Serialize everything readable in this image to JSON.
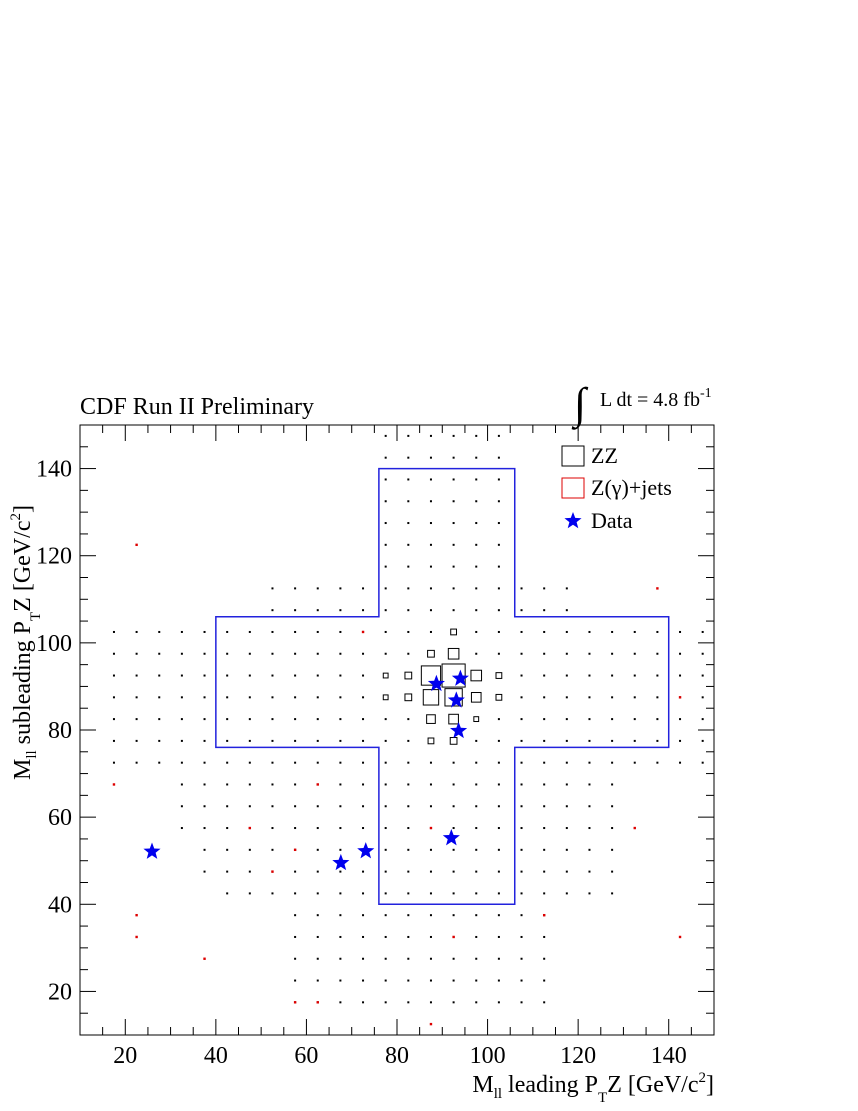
{
  "chart_data": {
    "type": "scatter",
    "title": "CDF Run II Preliminary",
    "annotation": {
      "integral_symbol": "∫",
      "text": "L dt = 4.8 fb",
      "superscript": "-1"
    },
    "xlabel": {
      "main": "M",
      "sub1": "ll",
      "mid": " leading P",
      "sub2": "T",
      "tail": "Z [GeV/c",
      "sup": "2",
      "end": "]"
    },
    "ylabel": {
      "main": "M",
      "sub1": "ll",
      "mid": " subleading P",
      "sub2": "T",
      "tail": "Z [GeV/c",
      "sup": "2",
      "end": "]"
    },
    "xlim": [
      10,
      150
    ],
    "ylim": [
      10,
      150
    ],
    "xticks": [
      20,
      40,
      60,
      80,
      100,
      120,
      140
    ],
    "yticks": [
      20,
      40,
      60,
      80,
      100,
      120,
      140
    ],
    "xtick_labels": [
      "20",
      "40",
      "60",
      "80",
      "100",
      "120",
      "140"
    ],
    "ytick_labels": [
      "20",
      "40",
      "60",
      "80",
      "100",
      "120",
      "140"
    ],
    "legend": {
      "placement": "top-right",
      "entries": [
        {
          "label": "ZZ",
          "marker": "box",
          "color": "#000000"
        },
        {
          "label": "Z(γ)+jets",
          "marker": "box",
          "color": "#dd0000"
        },
        {
          "label": "Data",
          "marker": "star",
          "color": "#0000ee"
        }
      ]
    },
    "colors": {
      "zz": "#000000",
      "zjets": "#dd0000",
      "data": "#0000ee",
      "signal_region": "#2222dd"
    },
    "signal_region": {
      "description_points": [
        [
          76,
          140
        ],
        [
          106,
          140
        ],
        [
          106,
          106
        ],
        [
          140,
          106
        ],
        [
          140,
          76
        ],
        [
          106,
          76
        ],
        [
          106,
          40
        ],
        [
          76,
          40
        ],
        [
          76,
          76
        ],
        [
          40,
          76
        ],
        [
          40,
          106
        ],
        [
          76,
          106
        ]
      ]
    },
    "series": [
      {
        "name": "ZZ",
        "kind": "box-histogram",
        "bin_width": 5,
        "points": [
          {
            "x": 87.5,
            "y": 92.5,
            "w": 1.0
          },
          {
            "x": 92.5,
            "y": 92.5,
            "w": 1.2
          },
          {
            "x": 87.5,
            "y": 87.5,
            "w": 0.8
          },
          {
            "x": 92.5,
            "y": 87.5,
            "w": 0.9
          },
          {
            "x": 97.5,
            "y": 92.5,
            "w": 0.55
          },
          {
            "x": 97.5,
            "y": 87.5,
            "w": 0.5
          },
          {
            "x": 92.5,
            "y": 97.5,
            "w": 0.55
          },
          {
            "x": 87.5,
            "y": 82.5,
            "w": 0.45
          },
          {
            "x": 92.5,
            "y": 82.5,
            "w": 0.5
          },
          {
            "x": 82.5,
            "y": 92.5,
            "w": 0.35
          },
          {
            "x": 82.5,
            "y": 87.5,
            "w": 0.35
          },
          {
            "x": 87.5,
            "y": 97.5,
            "w": 0.35
          },
          {
            "x": 92.5,
            "y": 77.5,
            "w": 0.35
          },
          {
            "x": 87.5,
            "y": 77.5,
            "w": 0.3
          },
          {
            "x": 102.5,
            "y": 92.5,
            "w": 0.3
          },
          {
            "x": 102.5,
            "y": 87.5,
            "w": 0.3
          },
          {
            "x": 92.5,
            "y": 102.5,
            "w": 0.3
          },
          {
            "x": 77.5,
            "y": 92.5,
            "w": 0.25
          },
          {
            "x": 77.5,
            "y": 87.5,
            "w": 0.25
          },
          {
            "x": 97.5,
            "y": 82.5,
            "w": 0.25
          }
        ],
        "small_dot_grid": {
          "x_range": [
            17.5,
            147.5
          ],
          "y_range": [
            17.5,
            147.5
          ],
          "step": 5
        }
      },
      {
        "name": "Z(γ)+jets",
        "kind": "box-histogram",
        "bin_width": 5,
        "points": [
          {
            "x": 22.5,
            "y": 122.5,
            "w": 0.12
          },
          {
            "x": 137.5,
            "y": 112.5,
            "w": 0.12
          },
          {
            "x": 17.5,
            "y": 67.5,
            "w": 0.12
          },
          {
            "x": 132.5,
            "y": 57.5,
            "w": 0.12
          },
          {
            "x": 22.5,
            "y": 37.5,
            "w": 0.12
          },
          {
            "x": 22.5,
            "y": 32.5,
            "w": 0.12
          },
          {
            "x": 37.5,
            "y": 27.5,
            "w": 0.12
          },
          {
            "x": 57.5,
            "y": 17.5,
            "w": 0.12
          },
          {
            "x": 62.5,
            "y": 17.5,
            "w": 0.12
          },
          {
            "x": 142.5,
            "y": 32.5,
            "w": 0.12
          },
          {
            "x": 87.5,
            "y": 12.5,
            "w": 0.12
          },
          {
            "x": 142.5,
            "y": 87.5,
            "w": 0.12
          },
          {
            "x": 72.5,
            "y": 102.5,
            "w": 0.12
          },
          {
            "x": 87.5,
            "y": 57.5,
            "w": 0.12
          },
          {
            "x": 92.5,
            "y": 32.5,
            "w": 0.12
          },
          {
            "x": 47.5,
            "y": 57.5,
            "w": 0.12
          },
          {
            "x": 57.5,
            "y": 52.5,
            "w": 0.12
          },
          {
            "x": 52.5,
            "y": 47.5,
            "w": 0.12
          },
          {
            "x": 62.5,
            "y": 67.5,
            "w": 0.12
          },
          {
            "x": 112.5,
            "y": 37.5,
            "w": 0.12
          }
        ]
      },
      {
        "name": "Data",
        "kind": "star",
        "points": [
          {
            "x": 25.9,
            "y": 52.1
          },
          {
            "x": 67.6,
            "y": 49.5
          },
          {
            "x": 73.1,
            "y": 52.2
          },
          {
            "x": 92.0,
            "y": 55.2
          },
          {
            "x": 88.7,
            "y": 90.6
          },
          {
            "x": 94.0,
            "y": 91.8
          },
          {
            "x": 93.1,
            "y": 86.8
          },
          {
            "x": 93.6,
            "y": 79.8
          }
        ]
      }
    ],
    "grid": false
  }
}
